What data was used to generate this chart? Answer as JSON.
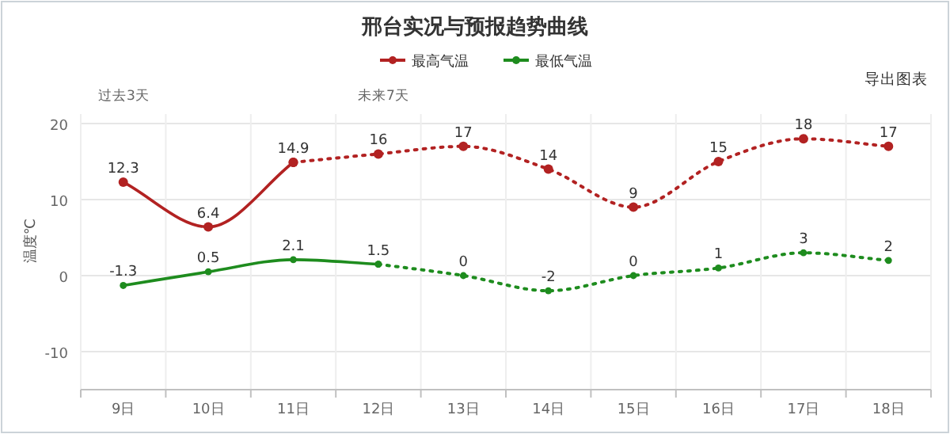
{
  "chart_data": {
    "type": "line",
    "title": "邢台实况与预报趋势曲线",
    "ylabel": "温度℃",
    "categories": [
      "9日",
      "10日",
      "11日",
      "12日",
      "13日",
      "14日",
      "15日",
      "16日",
      "17日",
      "18日"
    ],
    "series": [
      {
        "name": "最高气温",
        "color": "#b22222",
        "line_style": "solid",
        "values": [
          12.3,
          6.4,
          14.9,
          null,
          null,
          null,
          null,
          null,
          null,
          null
        ],
        "value_labels": [
          "12.3",
          "6.4",
          "14.9",
          null,
          null,
          null,
          null,
          null,
          null,
          null
        ]
      },
      {
        "color": "#b22222",
        "line_style": "dotted",
        "values": [
          null,
          null,
          14.9,
          16,
          17,
          14,
          9,
          15,
          18,
          17
        ],
        "value_labels": [
          null,
          null,
          null,
          "16",
          "17",
          "14",
          "9",
          "15",
          "18",
          "17"
        ]
      },
      {
        "name": "最低气温",
        "color": "#1e8c1e",
        "line_style": "solid",
        "values": [
          -1.3,
          0.5,
          2.1,
          1.5,
          null,
          null,
          null,
          null,
          null,
          null
        ],
        "value_labels": [
          "-1.3",
          "0.5",
          "2.1",
          "1.5",
          null,
          null,
          null,
          null,
          null,
          null
        ]
      },
      {
        "color": "#1e8c1e",
        "line_style": "dotted",
        "values": [
          null,
          null,
          null,
          1.5,
          0,
          -2,
          0,
          1,
          3,
          2
        ],
        "value_labels": [
          null,
          null,
          null,
          null,
          "0",
          "-2",
          "0",
          "1",
          "3",
          "2"
        ]
      }
    ],
    "ylim": [
      -15,
      20
    ],
    "yticks": [
      -10,
      0,
      10,
      20
    ],
    "grid": true,
    "legend": "top",
    "marker": "circle",
    "annotations": [
      "过去3天",
      "未来7天",
      "导出图表"
    ]
  }
}
